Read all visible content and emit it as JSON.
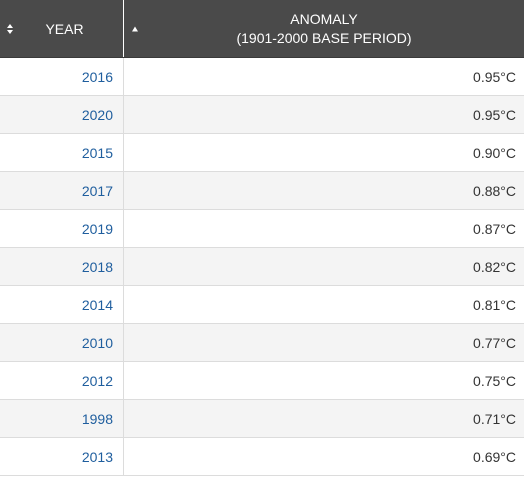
{
  "header": {
    "year_label": "YEAR",
    "anomaly_label_line1": "ANOMALY",
    "anomaly_label_line2": "(1901-2000 BASE PERIOD)",
    "header_bg": "#4a4a4a",
    "year_sort_icon": "sort-both-icon",
    "anomaly_sort_icon": "sort-ascending-icon"
  },
  "rows": [
    {
      "year": "2016",
      "anomaly": "0.95°C"
    },
    {
      "year": "2020",
      "anomaly": "0.95°C"
    },
    {
      "year": "2015",
      "anomaly": "0.90°C"
    },
    {
      "year": "2017",
      "anomaly": "0.88°C"
    },
    {
      "year": "2019",
      "anomaly": "0.87°C"
    },
    {
      "year": "2018",
      "anomaly": "0.82°C"
    },
    {
      "year": "2014",
      "anomaly": "0.81°C"
    },
    {
      "year": "2010",
      "anomaly": "0.77°C"
    },
    {
      "year": "2012",
      "anomaly": "0.75°C"
    },
    {
      "year": "1998",
      "anomaly": "0.71°C"
    },
    {
      "year": "2013",
      "anomaly": "0.69°C"
    }
  ],
  "colors": {
    "year_link": "#1f5e9e",
    "stripe": "#f4f4f4"
  }
}
